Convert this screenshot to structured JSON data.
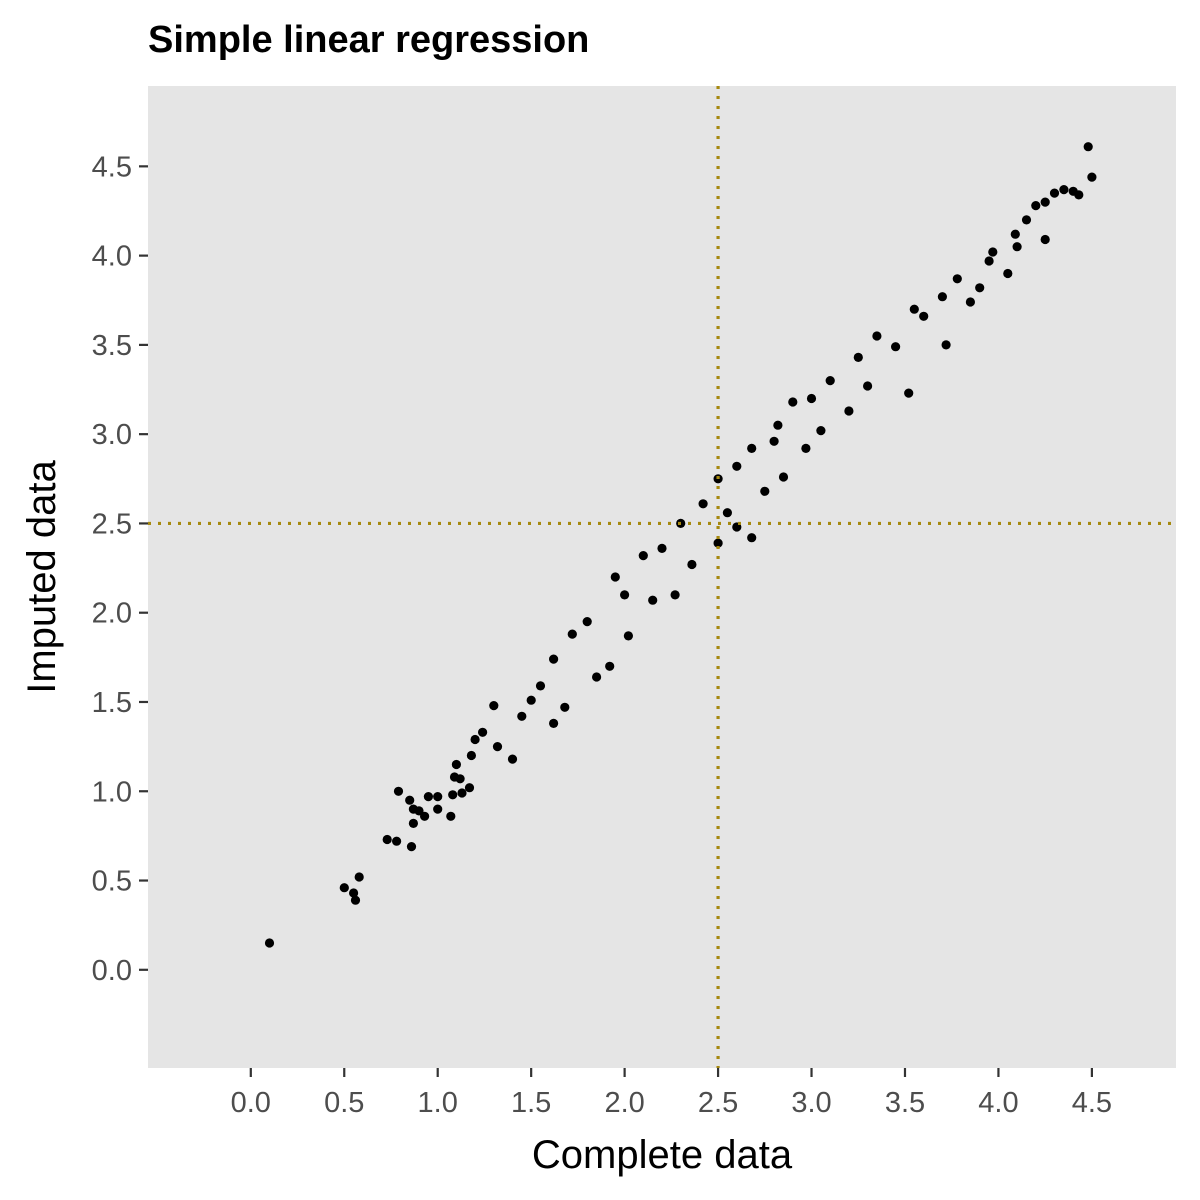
{
  "chart_data": {
    "type": "scatter",
    "title": "Simple linear regression",
    "xlabel": "Complete data",
    "ylabel": "Imputed data",
    "xlim": [
      -0.55,
      4.95
    ],
    "ylim": [
      -0.55,
      4.95
    ],
    "x_ticks": [
      "0.0",
      "0.5",
      "1.0",
      "1.5",
      "2.0",
      "2.5",
      "3.0",
      "3.5",
      "4.0",
      "4.5"
    ],
    "y_ticks": [
      "0.0",
      "0.5",
      "1.0",
      "1.5",
      "2.0",
      "2.5",
      "3.0",
      "3.5",
      "4.0",
      "4.5"
    ],
    "grid": false,
    "panel_background": "#e5e5e5",
    "point_color": "#000000",
    "reference_line_color": "#a6890f",
    "reference_lines": {
      "vertical_x": 2.5,
      "horizontal_y": 2.5
    },
    "series": [
      {
        "points": [
          [
            0.1,
            0.15
          ],
          [
            0.5,
            0.46
          ],
          [
            0.55,
            0.43
          ],
          [
            0.56,
            0.39
          ],
          [
            0.58,
            0.52
          ],
          [
            0.73,
            0.73
          ],
          [
            0.78,
            0.72
          ],
          [
            0.79,
            1.0
          ],
          [
            0.85,
            0.95
          ],
          [
            0.86,
            0.69
          ],
          [
            0.87,
            0.9
          ],
          [
            0.87,
            0.82
          ],
          [
            0.9,
            0.89
          ],
          [
            0.93,
            0.86
          ],
          [
            0.95,
            0.97
          ],
          [
            1.0,
            0.9
          ],
          [
            1.0,
            0.97
          ],
          [
            1.07,
            0.86
          ],
          [
            1.08,
            0.98
          ],
          [
            1.09,
            1.08
          ],
          [
            1.1,
            1.15
          ],
          [
            1.12,
            1.07
          ],
          [
            1.13,
            0.99
          ],
          [
            1.17,
            1.02
          ],
          [
            1.18,
            1.2
          ],
          [
            1.2,
            1.29
          ],
          [
            1.24,
            1.33
          ],
          [
            1.3,
            1.48
          ],
          [
            1.32,
            1.25
          ],
          [
            1.4,
            1.18
          ],
          [
            1.45,
            1.42
          ],
          [
            1.5,
            1.51
          ],
          [
            1.55,
            1.59
          ],
          [
            1.62,
            1.74
          ],
          [
            1.62,
            1.38
          ],
          [
            1.68,
            1.47
          ],
          [
            1.72,
            1.88
          ],
          [
            1.8,
            1.95
          ],
          [
            1.85,
            1.64
          ],
          [
            1.92,
            1.7
          ],
          [
            1.95,
            2.2
          ],
          [
            2.0,
            2.1
          ],
          [
            2.02,
            1.87
          ],
          [
            2.1,
            2.32
          ],
          [
            2.15,
            2.07
          ],
          [
            2.2,
            2.36
          ],
          [
            2.27,
            2.1
          ],
          [
            2.3,
            2.5
          ],
          [
            2.36,
            2.27
          ],
          [
            2.42,
            2.61
          ],
          [
            2.5,
            2.39
          ],
          [
            2.5,
            2.75
          ],
          [
            2.55,
            2.56
          ],
          [
            2.6,
            2.48
          ],
          [
            2.6,
            2.82
          ],
          [
            2.68,
            2.42
          ],
          [
            2.68,
            2.92
          ],
          [
            2.75,
            2.68
          ],
          [
            2.8,
            2.96
          ],
          [
            2.82,
            3.05
          ],
          [
            2.85,
            2.76
          ],
          [
            2.9,
            3.18
          ],
          [
            2.97,
            2.92
          ],
          [
            3.0,
            3.2
          ],
          [
            3.05,
            3.02
          ],
          [
            3.1,
            3.3
          ],
          [
            3.2,
            3.13
          ],
          [
            3.25,
            3.43
          ],
          [
            3.3,
            3.27
          ],
          [
            3.35,
            3.55
          ],
          [
            3.45,
            3.49
          ],
          [
            3.52,
            3.23
          ],
          [
            3.55,
            3.7
          ],
          [
            3.6,
            3.66
          ],
          [
            3.7,
            3.77
          ],
          [
            3.72,
            3.5
          ],
          [
            3.78,
            3.87
          ],
          [
            3.85,
            3.74
          ],
          [
            3.9,
            3.82
          ],
          [
            3.95,
            3.97
          ],
          [
            3.97,
            4.02
          ],
          [
            4.05,
            3.9
          ],
          [
            4.09,
            4.12
          ],
          [
            4.1,
            4.05
          ],
          [
            4.15,
            4.2
          ],
          [
            4.2,
            4.28
          ],
          [
            4.25,
            4.09
          ],
          [
            4.25,
            4.3
          ],
          [
            4.3,
            4.35
          ],
          [
            4.35,
            4.37
          ],
          [
            4.4,
            4.36
          ],
          [
            4.43,
            4.34
          ],
          [
            4.48,
            4.61
          ],
          [
            4.5,
            4.44
          ]
        ]
      }
    ]
  }
}
